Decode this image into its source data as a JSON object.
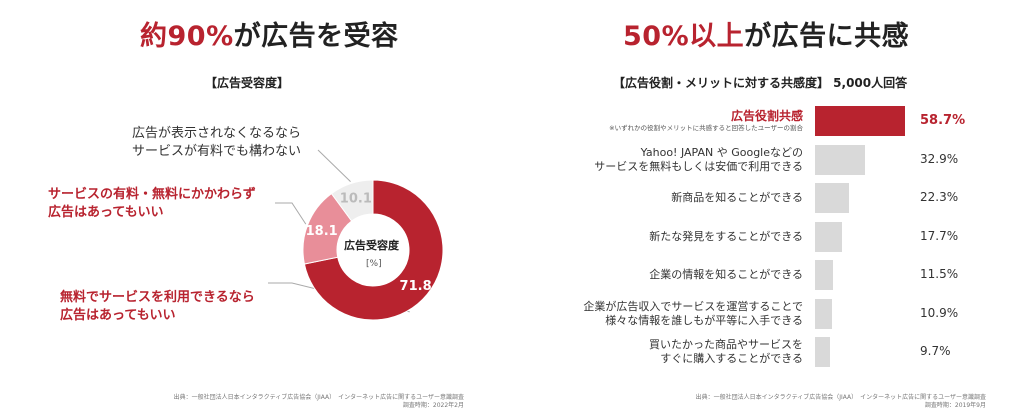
{
  "left": {
    "headline_accent": "約90%",
    "headline_rest": "が広告を受容",
    "subtitle": "【広告受容度】",
    "notes": [
      {
        "lines": [
          "広告が表示されなくなるなら",
          "サービスが有料でも構わない"
        ]
      },
      {
        "lines": [
          "サービスの有料・無料にかかわらず",
          "広告はあってもいい"
        ]
      },
      {
        "lines": [
          "無料でサービスを利用できるなら",
          "広告はあってもいい"
        ]
      }
    ],
    "center_title": "広告受容度",
    "center_unit": "[%]",
    "source_line1": "出典：一般社団法人日本インタラクティブ広告協会（JIAA）　インターネット広告に関するユーザー意識調査",
    "source_line2": "調査時期：2022年2月"
  },
  "right": {
    "headline_accent": "50%以上",
    "headline_rest": "が広告に共感",
    "subtitle": "【広告役割・メリットに対する共感度】 5,000人回答",
    "source_line1": "出典：一般社団法人日本インタラクティブ広告協会（JIAA）　インターネット広告に関するユーザー意識調査",
    "source_line2": "調査時期：2019年9月"
  },
  "colors": {
    "accent": "#b8232f",
    "pink": "#e88e99",
    "light_gray": "#eeeeee",
    "bar_gray": "#d9d9d9"
  },
  "chart_data": [
    {
      "type": "pie",
      "title": "【広告受容度】",
      "unit": "[%]",
      "categories": [
        "無料でサービスを利用できるなら広告はあってもいい",
        "サービスの有料・無料にかかわらず広告はあってもいい",
        "広告が表示されなくなるならサービスが有料でも構わない"
      ],
      "values": [
        71.8,
        18.1,
        10.1
      ],
      "value_labels": [
        "71.8",
        "18.1",
        "10.1"
      ],
      "colors": [
        "#b8232f",
        "#e88e99",
        "#eeeeee"
      ],
      "donut": true
    },
    {
      "type": "bar",
      "orientation": "horizontal",
      "title": "【広告役割・メリットに対する共感度】 5,000人回答",
      "categories": [
        {
          "lines": [
            "広告役割共感"
          ],
          "note": "※いずれかの役割やメリットに共感すると回答したユーザーの割合"
        },
        {
          "lines": [
            "Yahoo! JAPAN や Googleなどの",
            "サービスを無料もしくは安価で利用できる"
          ]
        },
        {
          "lines": [
            "新商品を知ることができる"
          ]
        },
        {
          "lines": [
            "新たな発見をすることができる"
          ]
        },
        {
          "lines": [
            "企業の情報を知ることができる"
          ]
        },
        {
          "lines": [
            "企業が広告収入でサービスを運営することで",
            "様々な情報を誰しもが平等に入手できる"
          ]
        },
        {
          "lines": [
            "買いたかった商品やサービスを",
            "すぐに購入することができる"
          ]
        }
      ],
      "values": [
        58.7,
        32.9,
        22.3,
        17.7,
        11.5,
        10.9,
        9.7
      ],
      "value_labels": [
        "58.7%",
        "32.9%",
        "22.3%",
        "17.7%",
        "11.5%",
        "10.9%",
        "9.7%"
      ],
      "xlim": [
        0,
        58.7
      ]
    }
  ]
}
